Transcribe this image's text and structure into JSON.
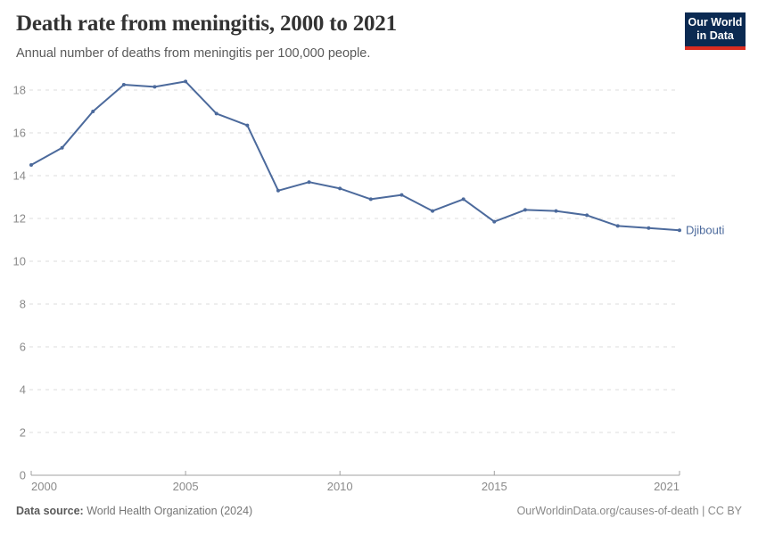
{
  "header": {
    "title": "Death rate from meningitis, 2000 to 2021",
    "subtitle": "Annual number of deaths from meningitis per 100,000 people."
  },
  "logo": {
    "line1": "Our World",
    "line2": "in Data",
    "bg_color": "#0b2a52",
    "accent_color": "#dc2c20"
  },
  "chart_data": {
    "type": "line",
    "title": "Death rate from meningitis, 2000 to 2021",
    "subtitle": "Annual number of deaths from meningitis per 100,000 people.",
    "x": [
      2000,
      2001,
      2002,
      2003,
      2004,
      2005,
      2006,
      2007,
      2008,
      2009,
      2010,
      2011,
      2012,
      2013,
      2014,
      2015,
      2016,
      2017,
      2018,
      2019,
      2020,
      2021
    ],
    "series": [
      {
        "name": "Djibouti",
        "color": "#4C6A9C",
        "values": [
          14.5,
          15.3,
          17.0,
          18.25,
          18.15,
          18.4,
          16.9,
          16.35,
          13.3,
          13.7,
          13.4,
          12.9,
          13.1,
          12.35,
          12.9,
          11.85,
          12.4,
          12.35,
          12.15,
          11.65,
          11.55,
          11.45
        ]
      }
    ],
    "xlabel": "",
    "ylabel": "",
    "ylim": [
      0,
      18
    ],
    "yticks": [
      0,
      2,
      4,
      6,
      8,
      10,
      12,
      14,
      16,
      18
    ],
    "xticks": [
      2000,
      2005,
      2010,
      2015,
      2021
    ],
    "grid": "horizontal-dashed",
    "legend": "end-of-line-label",
    "grid_color": "#dcdcdc",
    "axis_color": "#a1a1a1"
  },
  "footer": {
    "source_label": "Data source:",
    "source_value": " World Health Organization (2024)",
    "attribution": "OurWorldinData.org/causes-of-death | CC BY"
  }
}
